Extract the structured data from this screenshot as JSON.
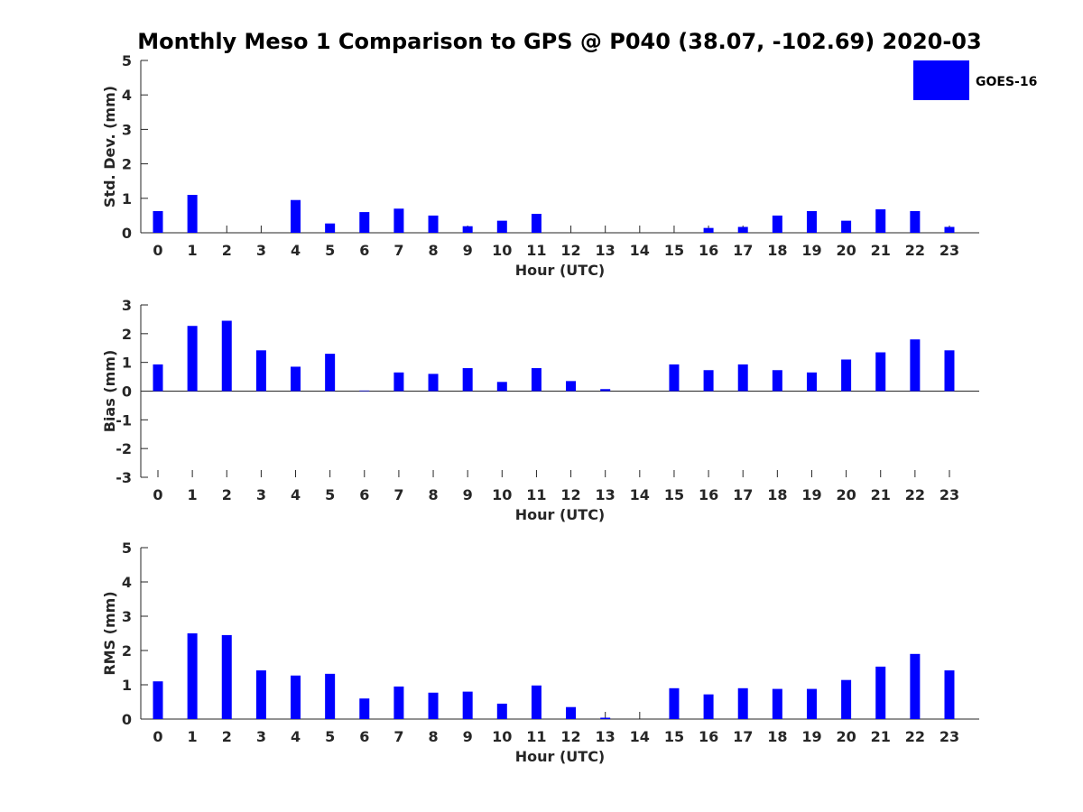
{
  "chart_data": {
    "title": "Monthly Meso 1 Comparison to GPS @ P040 (38.07, -102.69) 2020-03",
    "legend": {
      "label": "GOES-16",
      "color": "#0000ff",
      "placement": "top-right"
    },
    "bar_color": "#0000ff",
    "panels": [
      {
        "type": "bar",
        "name": "std-dev",
        "xlabel": "Hour (UTC)",
        "ylabel": "Std. Dev. (mm)",
        "ylim": [
          0,
          5
        ],
        "yticks": [
          0,
          1,
          2,
          3,
          4,
          5
        ],
        "categories": [
          0,
          1,
          2,
          3,
          4,
          5,
          6,
          7,
          8,
          9,
          10,
          11,
          12,
          13,
          14,
          15,
          16,
          17,
          18,
          19,
          20,
          21,
          22,
          23
        ],
        "values": [
          0.63,
          1.1,
          0,
          0,
          0.95,
          0.27,
          0.6,
          0.7,
          0.5,
          0.19,
          0.35,
          0.55,
          0,
          0,
          0,
          0,
          0.14,
          0.17,
          0.5,
          0.63,
          0.35,
          0.68,
          0.63,
          0.17
        ]
      },
      {
        "type": "bar",
        "name": "bias",
        "xlabel": "Hour (UTC)",
        "ylabel": "Bias (mm)",
        "ylim": [
          -3,
          3
        ],
        "yticks": [
          -3,
          -2,
          -1,
          0,
          1,
          2,
          3
        ],
        "categories": [
          0,
          1,
          2,
          3,
          4,
          5,
          6,
          7,
          8,
          9,
          10,
          11,
          12,
          13,
          14,
          15,
          16,
          17,
          18,
          19,
          20,
          21,
          22,
          23
        ],
        "values": [
          0.93,
          2.27,
          2.45,
          1.42,
          0.85,
          1.3,
          0.02,
          0.65,
          0.6,
          0.8,
          0.32,
          0.8,
          0.35,
          0.07,
          0,
          0.93,
          0.73,
          0.93,
          0.73,
          0.65,
          1.1,
          1.35,
          1.8,
          1.42
        ]
      },
      {
        "type": "bar",
        "name": "rms",
        "xlabel": "Hour (UTC)",
        "ylabel": "RMS (mm)",
        "ylim": [
          0,
          5
        ],
        "yticks": [
          0,
          1,
          2,
          3,
          4,
          5
        ],
        "categories": [
          0,
          1,
          2,
          3,
          4,
          5,
          6,
          7,
          8,
          9,
          10,
          11,
          12,
          13,
          14,
          15,
          16,
          17,
          18,
          19,
          20,
          21,
          22,
          23
        ],
        "values": [
          1.1,
          2.5,
          2.45,
          1.42,
          1.27,
          1.32,
          0.6,
          0.95,
          0.77,
          0.8,
          0.45,
          0.98,
          0.35,
          0.04,
          0,
          0.9,
          0.72,
          0.9,
          0.88,
          0.88,
          1.14,
          1.53,
          1.9,
          1.42
        ]
      }
    ]
  }
}
